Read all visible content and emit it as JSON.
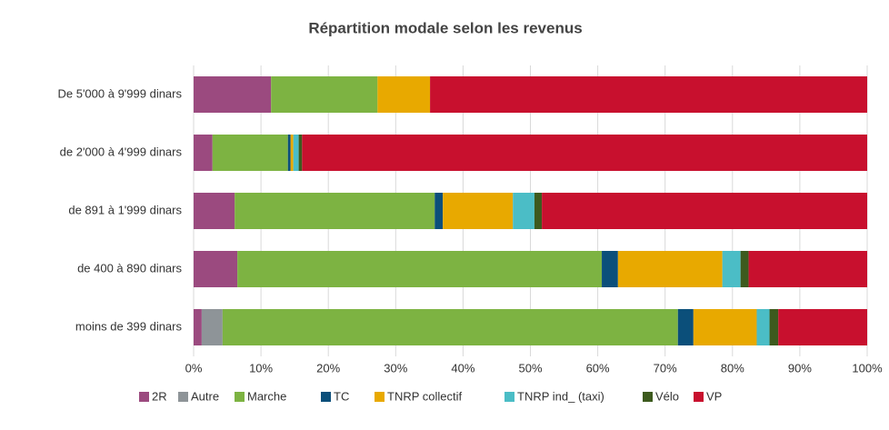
{
  "chart_data": {
    "type": "stacked_barh",
    "title": "Répartition modale selon les revenus",
    "categories": [
      "De 5'000 à 9'999 dinars",
      "de 2'000 à 4'999 dinars",
      "de 891  à 1'999 dinars",
      "de 400 à 890 dinars",
      "moins de 399 dinars"
    ],
    "series": [
      {
        "name": "2R",
        "color": "#9b4a7f",
        "values": [
          11.5,
          2.8,
          6.1,
          6.5,
          1.2
        ]
      },
      {
        "name": "Autre",
        "color": "#8e9498",
        "values": [
          0,
          0,
          0,
          0,
          3.1
        ]
      },
      {
        "name": "Marche",
        "color": "#7db342",
        "values": [
          15.8,
          11.2,
          29.7,
          54.1,
          67.6
        ]
      },
      {
        "name": "TC",
        "color": "#0b4f7a",
        "values": [
          0,
          0.4,
          1.2,
          2.4,
          2.3
        ]
      },
      {
        "name": "TNRP collectif",
        "color": "#e8a900",
        "values": [
          7.8,
          0.4,
          10.4,
          15.5,
          9.4
        ]
      },
      {
        "name": "TNRP ind_ (taxi)",
        "color": "#4bbdc6",
        "values": [
          0,
          0.8,
          3.2,
          2.7,
          1.9
        ]
      },
      {
        "name": "Vélo",
        "color": "#3d5a1e",
        "values": [
          0,
          0.5,
          1.1,
          1.2,
          1.3
        ]
      },
      {
        "name": "VP",
        "color": "#c8102e",
        "values": [
          64.9,
          83.9,
          48.3,
          17.6,
          13.2
        ]
      }
    ],
    "xlim": [
      0,
      100
    ],
    "xticks": [
      {
        "value": 0,
        "label": "0%"
      },
      {
        "value": 10,
        "label": "10%"
      },
      {
        "value": 20,
        "label": "20%"
      },
      {
        "value": 30,
        "label": "30%"
      },
      {
        "value": 40,
        "label": "40%"
      },
      {
        "value": 50,
        "label": "50%"
      },
      {
        "value": 60,
        "label": "60%"
      },
      {
        "value": 70,
        "label": "70%"
      },
      {
        "value": 80,
        "label": "80%"
      },
      {
        "value": 90,
        "label": "90%"
      },
      {
        "value": 100,
        "label": "100%"
      }
    ],
    "grid": true,
    "legend": "bottom"
  }
}
